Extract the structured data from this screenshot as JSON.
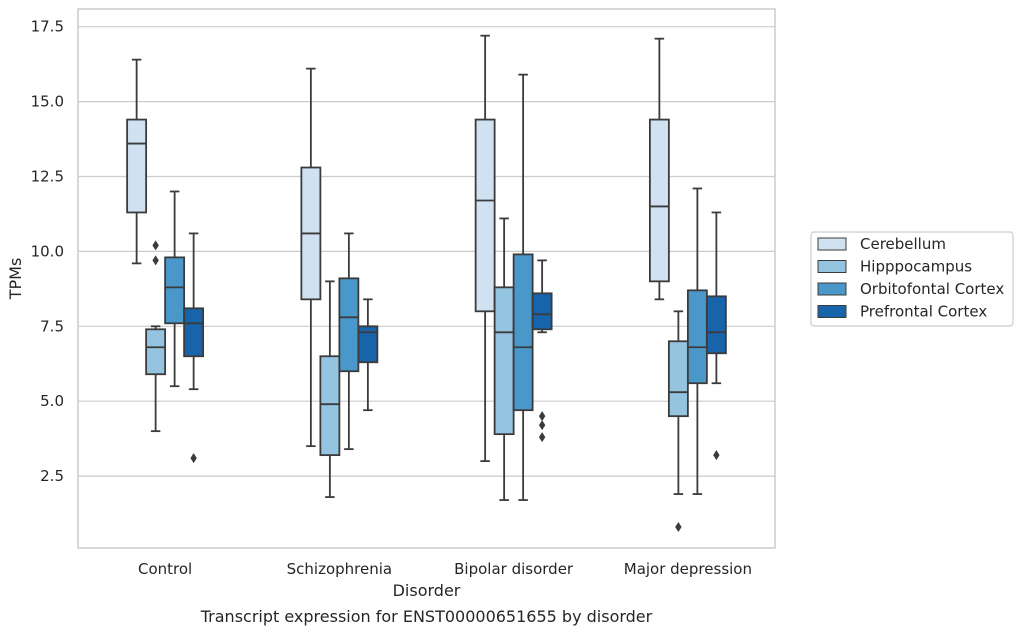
{
  "chart_data": {
    "type": "box",
    "caption": "Transcript expression for ENST00000651655 by disorder",
    "xlabel": "Disorder",
    "ylabel": "TPMs",
    "ylim": [
      0.0,
      18.0
    ],
    "yticks": [
      "2.5",
      "5.0",
      "7.5",
      "10.0",
      "12.5",
      "15.0",
      "17.5"
    ],
    "grid": "horizontal",
    "legend_position": "right",
    "categories": [
      "Control",
      "Schizophrenia",
      "Bipolar disorder",
      "Major depression"
    ],
    "series": [
      {
        "name": "Cerebellum",
        "color": "#d0e1f2",
        "boxes": [
          {
            "whislo": 9.6,
            "q1": 11.3,
            "med": 13.6,
            "q3": 14.4,
            "whishi": 16.4,
            "fliers": []
          },
          {
            "whislo": 3.5,
            "q1": 8.4,
            "med": 10.6,
            "q3": 12.8,
            "whishi": 16.1,
            "fliers": []
          },
          {
            "whislo": 3.0,
            "q1": 8.0,
            "med": 11.7,
            "q3": 14.4,
            "whishi": 17.2,
            "fliers": []
          },
          {
            "whislo": 8.4,
            "q1": 9.0,
            "med": 11.5,
            "q3": 14.4,
            "whishi": 17.1,
            "fliers": []
          }
        ]
      },
      {
        "name": "Hipppocampus",
        "color": "#94c4df",
        "boxes": [
          {
            "whislo": 4.0,
            "q1": 5.9,
            "med": 6.8,
            "q3": 7.4,
            "whishi": 7.5,
            "fliers": [
              9.7,
              10.2
            ]
          },
          {
            "whislo": 1.8,
            "q1": 3.2,
            "med": 4.9,
            "q3": 6.5,
            "whishi": 9.0,
            "fliers": []
          },
          {
            "whislo": 1.7,
            "q1": 3.9,
            "med": 7.3,
            "q3": 8.8,
            "whishi": 11.1,
            "fliers": []
          },
          {
            "whislo": 1.9,
            "q1": 4.5,
            "med": 5.3,
            "q3": 7.0,
            "whishi": 8.0,
            "fliers": [
              0.8
            ]
          }
        ]
      },
      {
        "name": "Orbitofontal Cortex",
        "color": "#4a98c9",
        "boxes": [
          {
            "whislo": 5.5,
            "q1": 7.6,
            "med": 8.8,
            "q3": 9.8,
            "whishi": 12.0,
            "fliers": []
          },
          {
            "whislo": 3.4,
            "q1": 6.0,
            "med": 7.8,
            "q3": 9.1,
            "whishi": 10.6,
            "fliers": []
          },
          {
            "whislo": 1.7,
            "q1": 4.7,
            "med": 6.8,
            "q3": 9.9,
            "whishi": 15.9,
            "fliers": []
          },
          {
            "whislo": 1.9,
            "q1": 5.6,
            "med": 6.8,
            "q3": 8.7,
            "whishi": 12.1,
            "fliers": []
          }
        ]
      },
      {
        "name": "Prefrontal Cortex",
        "color": "#1764ab",
        "boxes": [
          {
            "whislo": 5.4,
            "q1": 6.5,
            "med": 7.6,
            "q3": 8.1,
            "whishi": 10.6,
            "fliers": [
              3.1
            ]
          },
          {
            "whislo": 4.7,
            "q1": 6.3,
            "med": 7.3,
            "q3": 7.5,
            "whishi": 8.4,
            "fliers": []
          },
          {
            "whislo": 7.3,
            "q1": 7.4,
            "med": 7.9,
            "q3": 8.6,
            "whishi": 9.7,
            "fliers": [
              3.8,
              4.2,
              4.5
            ]
          },
          {
            "whislo": 5.6,
            "q1": 6.6,
            "med": 7.3,
            "q3": 8.5,
            "whishi": 11.3,
            "fliers": [
              3.2
            ]
          }
        ]
      }
    ]
  }
}
